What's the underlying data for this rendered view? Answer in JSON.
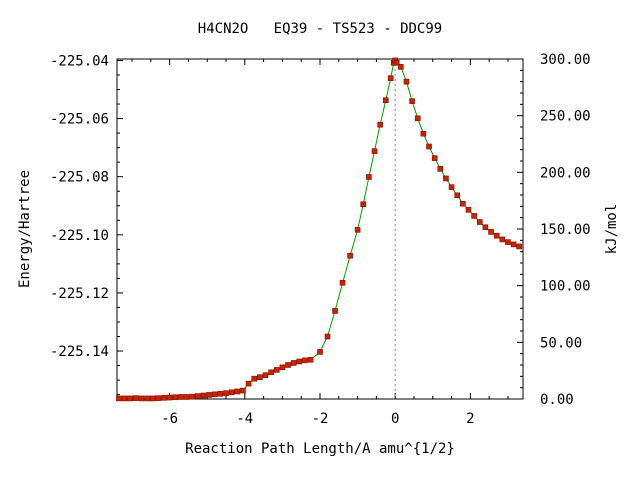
{
  "chart_data": {
    "type": "line",
    "title": "H4CN2O   EQ39 - TS523 - DDC99",
    "xlabel": "Reaction Path Length/A amu^{1/2}",
    "ylabel": "Energy/Hartree",
    "y2label": "kJ/mol",
    "xlim": [
      -7.4,
      3.4
    ],
    "ylim": [
      -225.1565,
      -225.0395
    ],
    "y2lim": [
      0.0,
      300.0
    ],
    "x_ticks": [
      -6,
      -4,
      -2,
      0,
      2
    ],
    "x_tick_labels": [
      "-6",
      "-4",
      "-2",
      "0",
      "2"
    ],
    "y_ticks": [
      -225.04,
      -225.06,
      -225.08,
      -225.1,
      -225.12,
      -225.14
    ],
    "y_tick_labels": [
      "-225.04",
      "-225.06",
      "-225.08",
      "-225.10",
      "-225.12",
      "-225.14"
    ],
    "y2_ticks": [
      300,
      250,
      200,
      150,
      100,
      50,
      0
    ],
    "y2_tick_labels": [
      "300.00",
      "250.00",
      "200.00",
      "150.00",
      "100.00",
      "50.00",
      "0.00"
    ],
    "ts_x": 0.0,
    "grid": false,
    "colors": {
      "line": "#00a000",
      "marker": "#cc2200",
      "marker_edge": "#7a1000",
      "ts_guide": "#888888"
    },
    "series": [
      {
        "x": [
          -7.35,
          -7.2,
          -7.05,
          -6.9,
          -6.75,
          -6.6,
          -6.45,
          -6.3,
          -6.15,
          -6.0,
          -5.85,
          -5.7,
          -5.55,
          -5.4,
          -5.25,
          -5.1,
          -4.95,
          -4.8,
          -4.65,
          -4.5,
          -4.35,
          -4.2,
          -4.05,
          -3.9,
          -3.75,
          -3.6,
          -3.45,
          -3.3,
          -3.15,
          -3.0,
          -2.85,
          -2.7,
          -2.55,
          -2.4,
          -2.25,
          -2.0,
          -1.8,
          -1.6,
          -1.4,
          -1.2,
          -1.0,
          -0.85,
          -0.7,
          -0.55,
          -0.4,
          -0.25,
          -0.12,
          -0.04,
          0.0,
          0.04,
          0.15,
          0.3,
          0.45,
          0.6,
          0.75,
          0.9,
          1.05,
          1.2,
          1.35,
          1.5,
          1.65,
          1.8,
          1.95,
          2.1,
          2.25,
          2.4,
          2.55,
          2.7,
          2.85,
          3.0,
          3.15,
          3.3
        ],
        "y": [
          -225.1563,
          -225.1563,
          -225.1563,
          -225.1562,
          -225.1563,
          -225.1563,
          -225.1563,
          -225.1562,
          -225.1561,
          -225.156,
          -225.1559,
          -225.1558,
          -225.1558,
          -225.1557,
          -225.1555,
          -225.1553,
          -225.1551,
          -225.1549,
          -225.1547,
          -225.1545,
          -225.1542,
          -225.1539,
          -225.1536,
          -225.1512,
          -225.1495,
          -225.149,
          -225.1483,
          -225.1473,
          -225.1465,
          -225.1456,
          -225.1448,
          -225.1441,
          -225.1436,
          -225.1432,
          -225.143,
          -225.1403,
          -225.135,
          -225.1262,
          -225.1165,
          -225.1072,
          -225.0983,
          -225.0895,
          -225.0801,
          -225.0712,
          -225.0621,
          -225.0537,
          -225.0461,
          -225.0408,
          -225.04,
          -225.0408,
          -225.0422,
          -225.0473,
          -225.054,
          -225.0599,
          -225.0652,
          -225.0696,
          -225.0736,
          -225.0773,
          -225.0806,
          -225.0836,
          -225.0864,
          -225.0893,
          -225.0914,
          -225.0935,
          -225.0956,
          -225.0974,
          -225.099,
          -225.1003,
          -225.1016,
          -225.1025,
          -225.1033,
          -225.104
        ]
      }
    ]
  }
}
